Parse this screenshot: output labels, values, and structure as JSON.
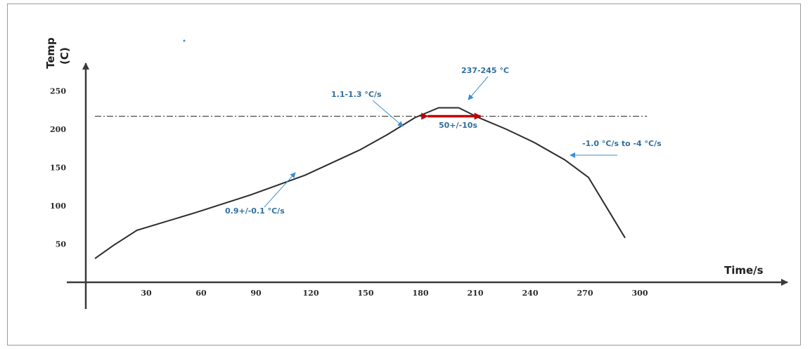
{
  "chart_data": {
    "type": "line",
    "xlabel": "Time/s",
    "ylabel": "Temp (C)",
    "ylabel_parts": [
      "Temp",
      "(C)"
    ],
    "x_ticks": [
      30,
      60,
      90,
      120,
      150,
      180,
      210,
      240,
      270,
      300
    ],
    "y_ticks": [
      50,
      100,
      150,
      200,
      250
    ],
    "xlim": [
      -10,
      325
    ],
    "ylim": [
      10,
      300
    ],
    "grid": false,
    "series": [
      {
        "x": [
          5,
          15,
          28,
          60,
          90,
          120,
          150,
          165,
          180,
          193,
          204,
          215,
          230,
          245,
          262,
          275,
          295
        ],
        "y": [
          31,
          48,
          68,
          91,
          114,
          140,
          173,
          193,
          215,
          228,
          228,
          215,
          200,
          183,
          160,
          137,
          58
        ]
      }
    ],
    "reference_line": {
      "y": 217,
      "x_range": [
        5,
        307
      ],
      "style": "dash-dot"
    },
    "annotations": [
      {
        "text": "0.9+/-0.1 °C/s",
        "color": "#2f6f9f"
      },
      {
        "text": "1.1-1.3 °C/s",
        "color": "#2f6f9f"
      },
      {
        "text": "237-245 °C",
        "color": "#2f6f9f"
      },
      {
        "text": "50+/-10s",
        "color": "#2f6f9f"
      },
      {
        "text": "-1.0 °C/s to -4 °C/s",
        "color": "#2f6f9f"
      }
    ],
    "duration_marker": {
      "x_range": [
        187,
        216
      ],
      "y": 217,
      "color": "#c00000"
    },
    "colors": {
      "line": "#2b2b2b",
      "axis": "#3a3a3a",
      "annotation": "#2f6f9f",
      "arrow": "#3a8fd0",
      "marker": "#c00000"
    }
  }
}
